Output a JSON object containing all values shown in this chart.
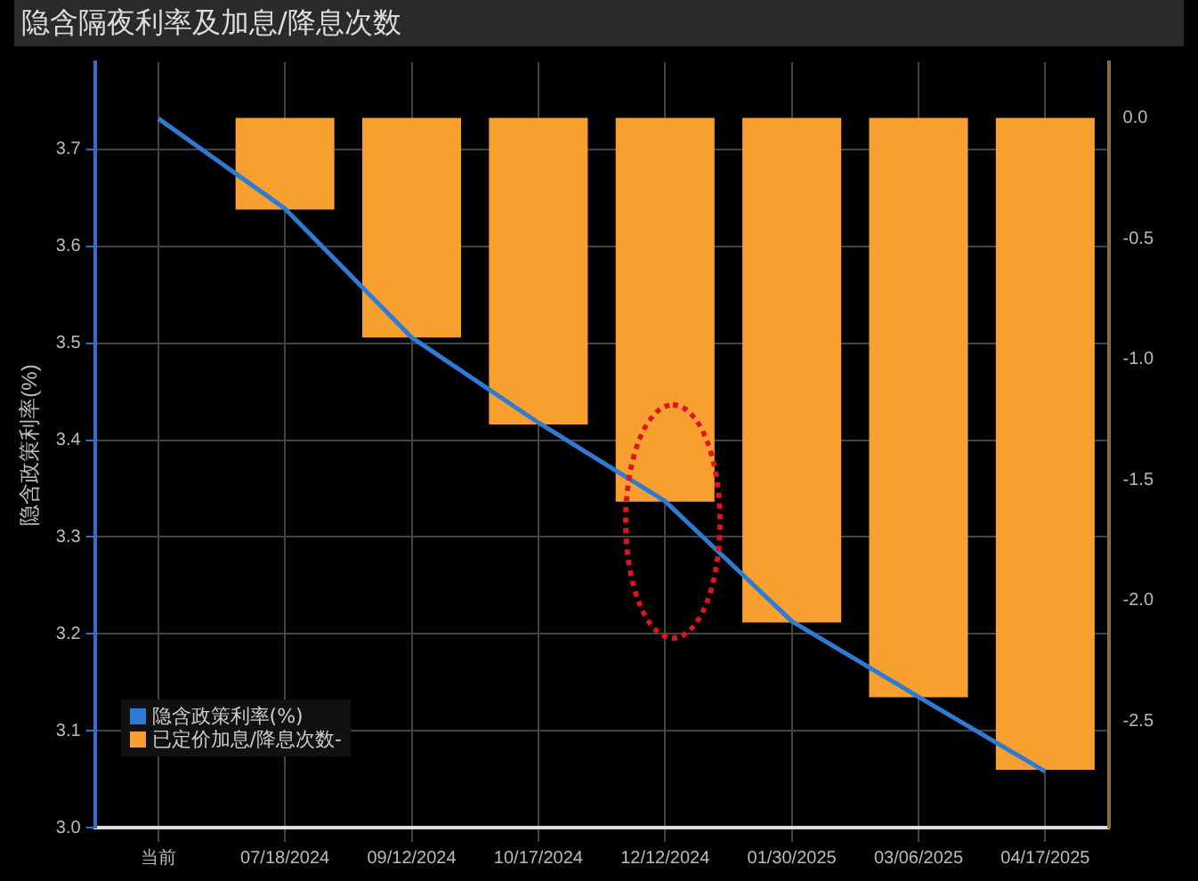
{
  "chart_data": {
    "type": "bar",
    "title": "隐含隔夜利率及加息/降息次数",
    "ylabel": "隐含政策利率(%)",
    "categories": [
      "当前",
      "07/18/2024",
      "09/12/2024",
      "10/17/2024",
      "12/12/2024",
      "01/30/2025",
      "03/06/2025",
      "04/17/2025"
    ],
    "series": [
      {
        "name": "隐含政策利率(%)",
        "type": "line",
        "color": "#2e7bd4",
        "values": [
          3.732,
          3.639,
          3.506,
          3.418,
          3.337,
          3.213,
          3.135,
          3.058
        ]
      },
      {
        "name": "已定价加息/降息次数-",
        "axis": "y2",
        "color": "#f7a030",
        "values": [
          0,
          -0.38,
          -0.91,
          -1.27,
          -1.59,
          -2.09,
          -2.4,
          -2.7
        ]
      }
    ],
    "ylim": [
      3.0,
      3.79
    ],
    "yticks": [
      {
        "value": 3,
        "label": "3.0"
      },
      3.1,
      3.2,
      3.3,
      3.4,
      3.5,
      3.6,
      3.7
    ],
    "y2lim": [
      -2.94,
      0.23
    ],
    "y2ticks": [
      {
        "value": 0,
        "label": "0.0"
      },
      -0.5,
      {
        "value": -1,
        "label": "-1.0"
      },
      -1.5,
      {
        "value": -2,
        "label": "-2.0"
      },
      -2.5
    ],
    "grid": true,
    "legend": "bottom left",
    "marker": "none",
    "line_style": "solid"
  }
}
